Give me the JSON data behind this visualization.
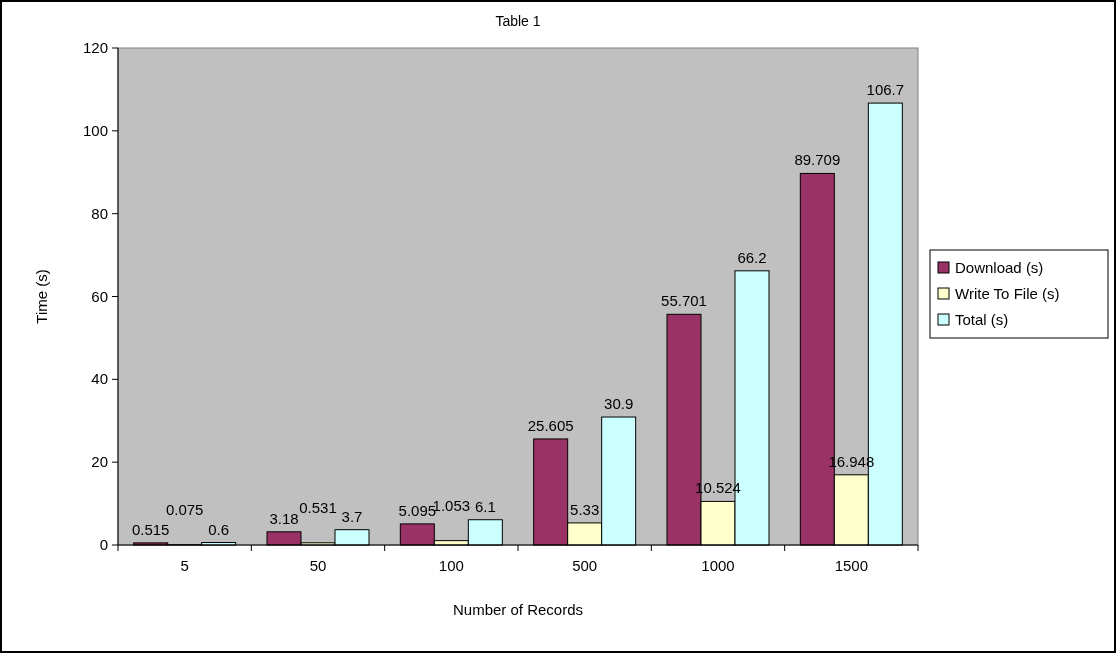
{
  "chart_data": {
    "type": "bar",
    "title": "Table 1",
    "xlabel": "Number of Records",
    "ylabel": "Time (s)",
    "categories": [
      "5",
      "50",
      "100",
      "500",
      "1000",
      "1500"
    ],
    "series": [
      {
        "name": "Download (s)",
        "color": "#993366",
        "values": [
          0.515,
          3.18,
          5.095,
          25.605,
          55.701,
          89.709
        ]
      },
      {
        "name": "Write To File (s)",
        "color": "#ffffcc",
        "values": [
          0.075,
          0.531,
          1.053,
          5.33,
          10.524,
          16.948
        ]
      },
      {
        "name": "Total (s)",
        "color": "#ccffff",
        "values": [
          0.6,
          3.7,
          6.1,
          30.9,
          66.2,
          106.7
        ]
      }
    ],
    "ylim": [
      0,
      120
    ],
    "yticks": [
      0,
      20,
      40,
      60,
      80,
      100,
      120
    ],
    "grid": false,
    "legend": "right",
    "data_labels": true
  }
}
